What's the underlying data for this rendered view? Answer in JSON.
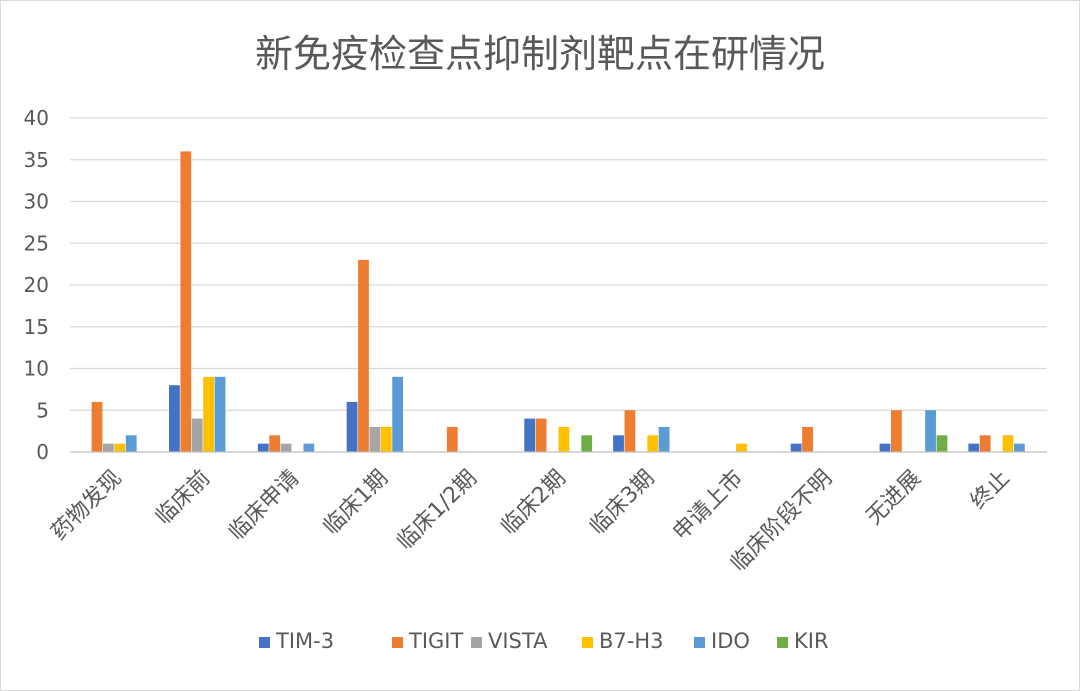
{
  "chart_data": {
    "type": "bar",
    "title": "新免疫检查点抑制剂靶点在研情况",
    "categories": [
      "药物发现",
      "临床前",
      "临床申请",
      "临床1期",
      "临床1/2期",
      "临床2期",
      "临床3期",
      "申请上市",
      "临床阶段不明",
      "无进展",
      "终止"
    ],
    "series": [
      {
        "name": "TIM-3",
        "color": "#4472c4",
        "values": [
          0,
          8,
          1,
          6,
          0,
          4,
          2,
          0,
          1,
          1,
          1
        ]
      },
      {
        "name": "TIGIT",
        "color": "#ed7d31",
        "values": [
          6,
          36,
          2,
          23,
          3,
          4,
          5,
          0,
          3,
          5,
          2
        ]
      },
      {
        "name": "VISTA",
        "color": "#a5a5a5",
        "values": [
          1,
          4,
          1,
          3,
          0,
          0,
          0,
          0,
          0,
          0,
          0
        ]
      },
      {
        "name": "B7-H3",
        "color": "#ffc000",
        "values": [
          1,
          9,
          0,
          3,
          0,
          3,
          2,
          1,
          0,
          0,
          2
        ]
      },
      {
        "name": "IDO",
        "color": "#5b9bd5",
        "values": [
          2,
          9,
          1,
          9,
          0,
          0,
          3,
          0,
          0,
          5,
          1
        ]
      },
      {
        "name": "KIR",
        "color": "#70ad47",
        "values": [
          0,
          0,
          0,
          0,
          0,
          2,
          0,
          0,
          0,
          2,
          0
        ]
      }
    ],
    "ylim": [
      0,
      40
    ],
    "yticks": [
      0,
      5,
      10,
      15,
      20,
      25,
      30,
      35,
      40
    ],
    "xlabel": "",
    "ylabel": "",
    "grid": true,
    "legend_position": "bottom"
  }
}
